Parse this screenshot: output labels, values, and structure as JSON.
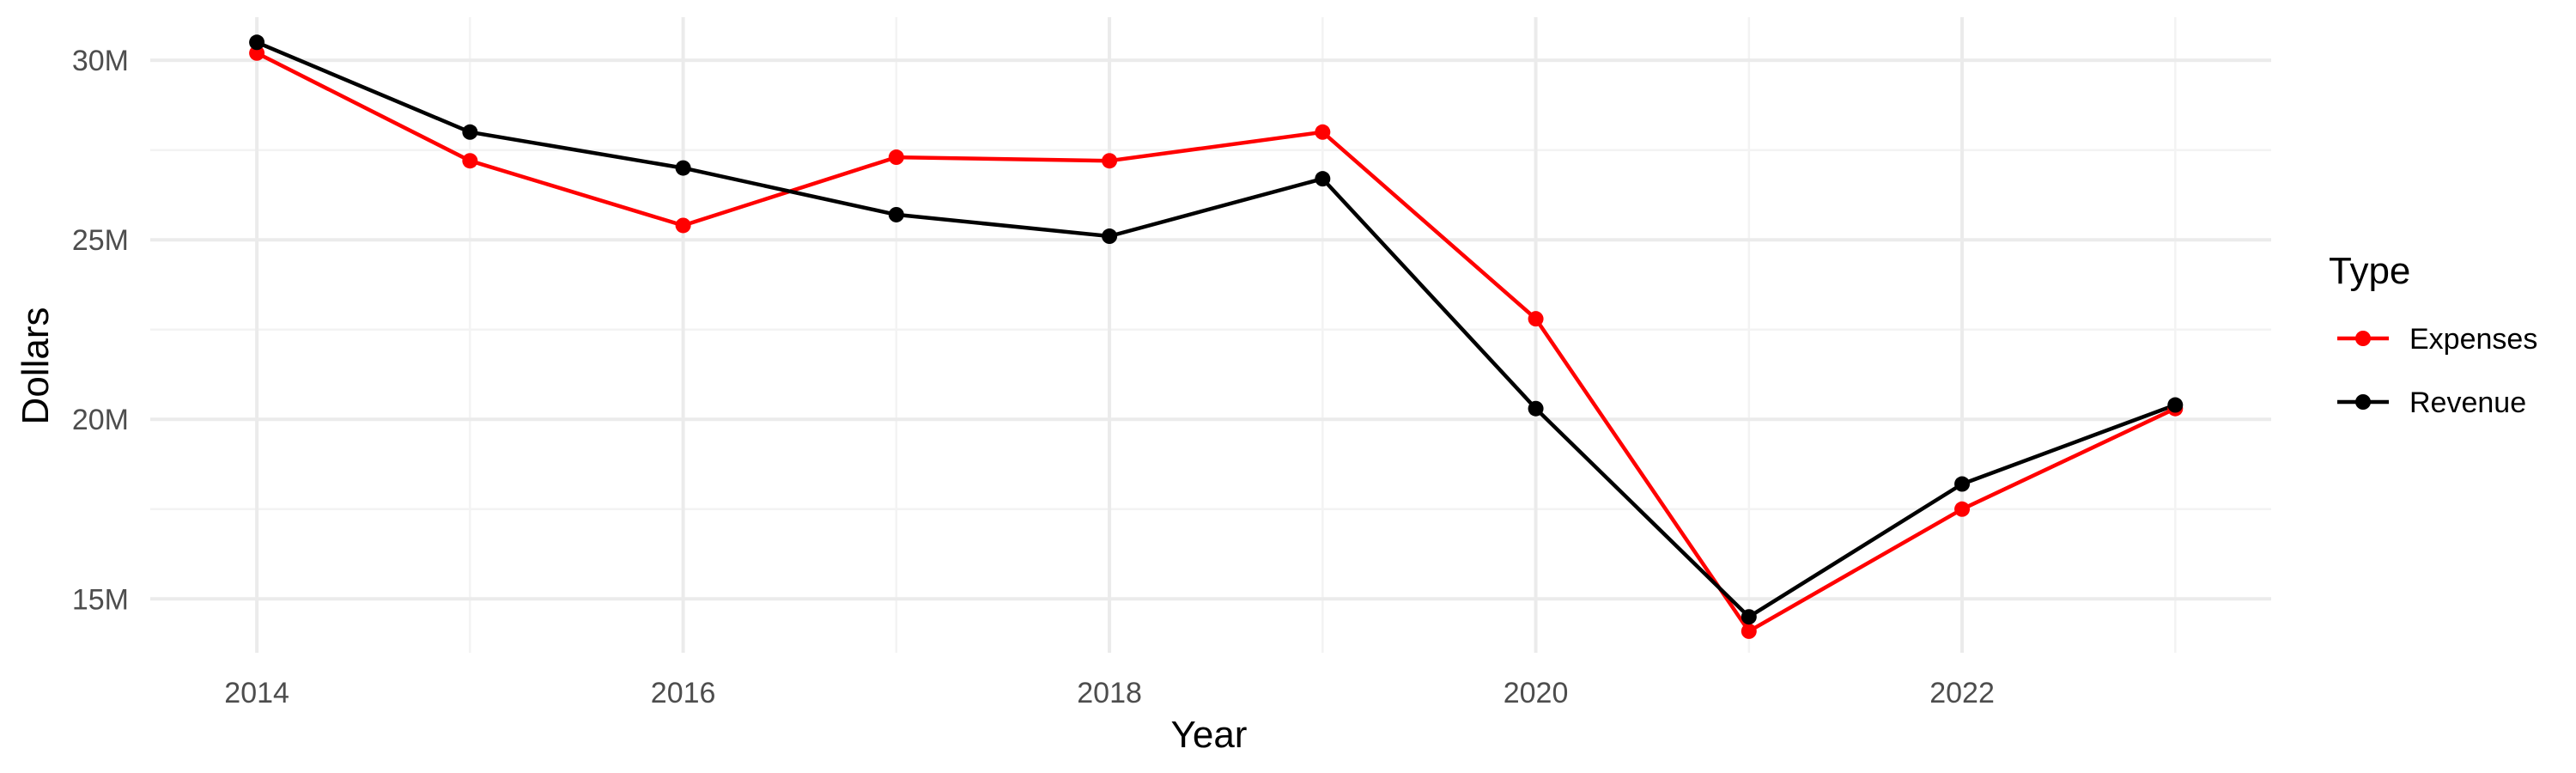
{
  "chart_data": {
    "type": "line",
    "title": "",
    "xlabel": "Year",
    "ylabel": "Dollars",
    "x": [
      2014,
      2015,
      2016,
      2017,
      2018,
      2019,
      2020,
      2021,
      2022,
      2023
    ],
    "xlim": [
      2013.5,
      2023.45
    ],
    "ylim": [
      13.5,
      31.2
    ],
    "x_ticks": [
      2014,
      2016,
      2018,
      2020,
      2022
    ],
    "x_tick_labels": [
      "2014",
      "2016",
      "2018",
      "2020",
      "2022"
    ],
    "y_ticks": [
      15,
      20,
      25,
      30
    ],
    "y_tick_labels": [
      "15M",
      "20M",
      "25M",
      "30M"
    ],
    "y_unit": "millions of dollars",
    "grid": true,
    "legend": {
      "title": "Type",
      "placement": "right"
    },
    "series": [
      {
        "name": "Expenses",
        "color": "#ff0000",
        "values": [
          30.2,
          27.2,
          25.4,
          27.3,
          27.2,
          28.0,
          22.8,
          14.1,
          17.5,
          20.3
        ]
      },
      {
        "name": "Revenue",
        "color": "#000000",
        "values": [
          30.5,
          28.0,
          27.0,
          25.7,
          25.1,
          26.7,
          20.3,
          14.5,
          18.2,
          20.4
        ]
      }
    ]
  }
}
